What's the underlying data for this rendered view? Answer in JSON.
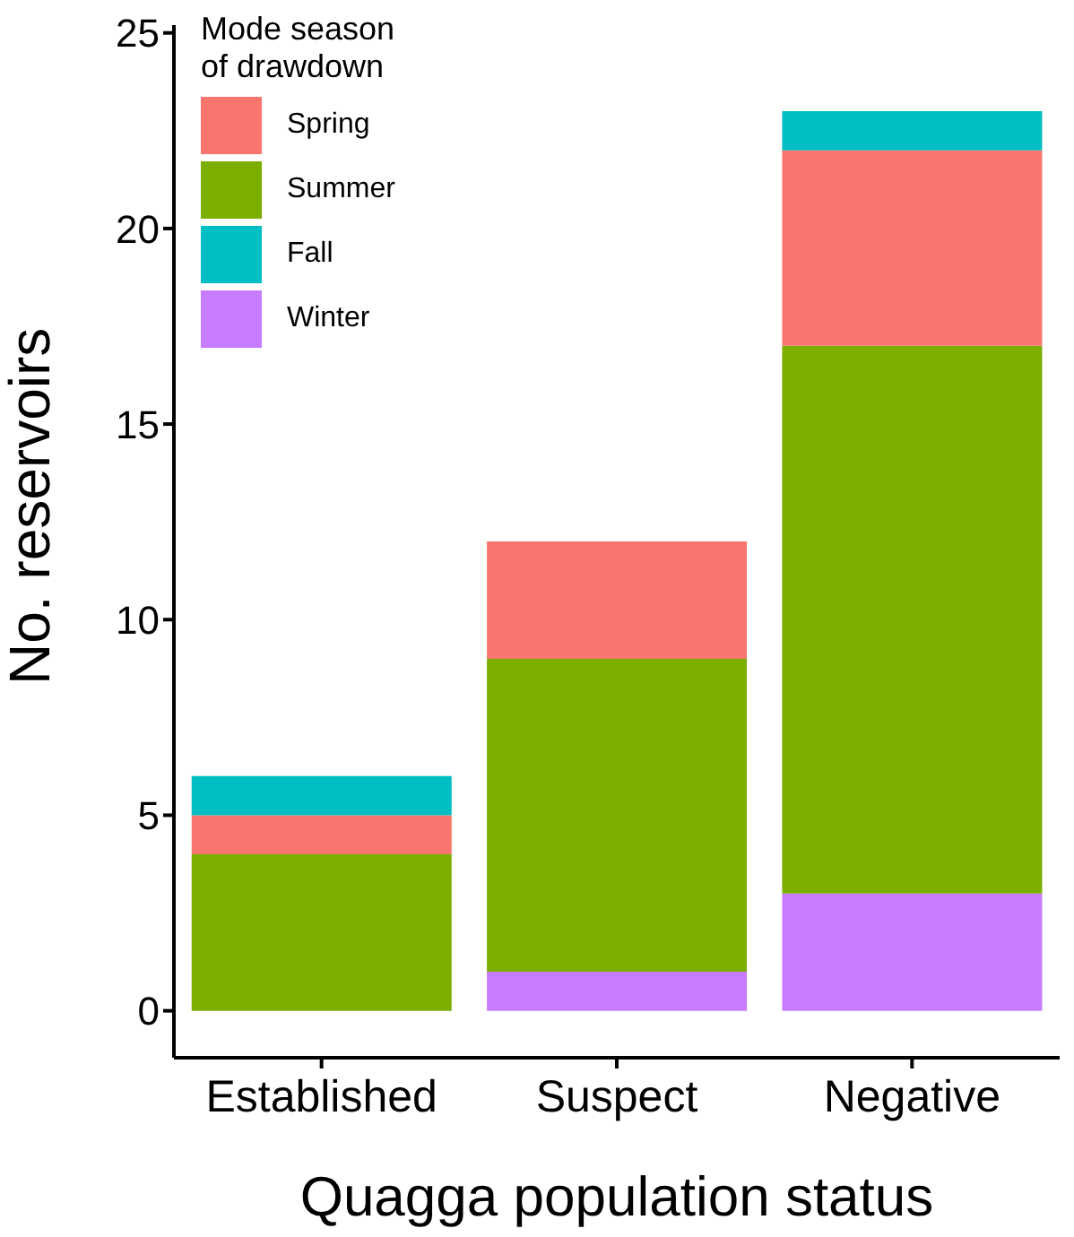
{
  "chart_data": {
    "type": "bar",
    "stacked": true,
    "xlabel": "Quagga population status",
    "ylabel": "No. reservoirs",
    "legend_title": "Mode season\nof drawdown",
    "legend": "top left",
    "grid": false,
    "categories": [
      "Established",
      "Suspect",
      "Negative"
    ],
    "ylim": [
      -1.2,
      25.2
    ],
    "yticks": [
      0,
      5,
      10,
      15,
      20,
      25
    ],
    "series": [
      {
        "name": "Winter",
        "color": "#c77cff",
        "values": [
          0,
          1,
          3
        ]
      },
      {
        "name": "Summer",
        "color": "#7cae00",
        "values": [
          4,
          8,
          14
        ]
      },
      {
        "name": "Spring",
        "color": "#f8766d",
        "values": [
          1,
          3,
          5
        ]
      },
      {
        "name": "Fall",
        "color": "#00bfc4",
        "values": [
          1,
          0,
          1
        ]
      }
    ]
  }
}
